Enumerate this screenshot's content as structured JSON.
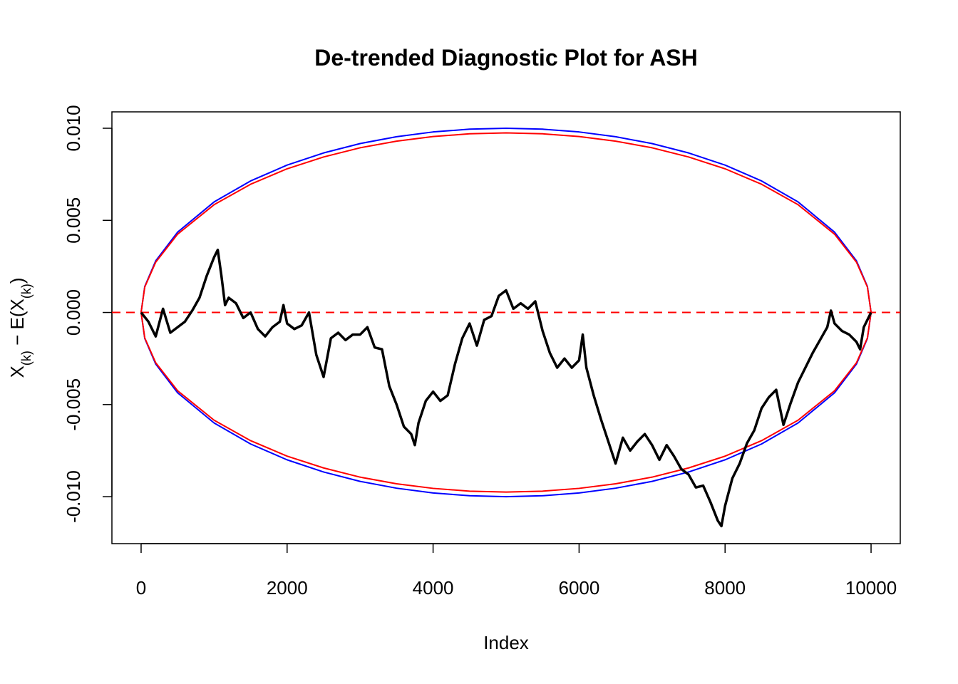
{
  "chart_data": {
    "type": "line",
    "title": "De-trended Diagnostic Plot for ASH",
    "xlabel": "Index",
    "ylabel": [
      "X",
      "(k)",
      " − E(X",
      "(k)",
      ")"
    ],
    "xlim": [
      -400,
      10400
    ],
    "ylim": [
      -0.01255,
      0.01089
    ],
    "xticks": [
      0,
      2000,
      4000,
      6000,
      8000,
      10000
    ],
    "yticks": [
      {
        "value": -0.01,
        "label": "-0.010"
      },
      {
        "value": -0.005,
        "label": "-0.005"
      },
      {
        "value": 0,
        "label": "0.000"
      },
      {
        "value": 0.005,
        "label": "0.005"
      },
      {
        "value": 0.01,
        "label": "0.010"
      }
    ],
    "reference_line": {
      "value": 0,
      "color": "#ff0000",
      "dashed": true
    },
    "series": [
      {
        "color": "#0000ff",
        "x": [
          0,
          50,
          200,
          500,
          1000,
          1500,
          2000,
          2500,
          3000,
          3500,
          4000,
          4500,
          5000,
          5500,
          6000,
          6500,
          7000,
          7500,
          8000,
          8500,
          9000,
          9500,
          9800,
          9950,
          10000
        ],
        "values": [
          0,
          0.00141,
          0.0028,
          0.00436,
          0.006,
          0.00714,
          0.008,
          0.00866,
          0.00917,
          0.00954,
          0.0098,
          0.00995,
          0.01,
          0.00995,
          0.0098,
          0.00954,
          0.00917,
          0.00866,
          0.008,
          0.00714,
          0.006,
          0.00436,
          0.0028,
          0.00141,
          0
        ]
      },
      {
        "color": "#0000ff",
        "x": [
          0,
          50,
          200,
          500,
          1000,
          1500,
          2000,
          2500,
          3000,
          3500,
          4000,
          4500,
          5000,
          5500,
          6000,
          6500,
          7000,
          7500,
          8000,
          8500,
          9000,
          9500,
          9800,
          9950,
          10000
        ],
        "values": [
          0,
          -0.00141,
          -0.0028,
          -0.00436,
          -0.006,
          -0.00714,
          -0.008,
          -0.00866,
          -0.00917,
          -0.00954,
          -0.0098,
          -0.00995,
          -0.01,
          -0.00995,
          -0.0098,
          -0.00954,
          -0.00917,
          -0.00866,
          -0.008,
          -0.00714,
          -0.006,
          -0.00436,
          -0.0028,
          -0.00141,
          0
        ]
      },
      {
        "color": "#ff0000",
        "x": [
          0,
          50,
          200,
          500,
          1000,
          1500,
          2000,
          2500,
          3000,
          3500,
          4000,
          4500,
          5000,
          5500,
          6000,
          6500,
          7000,
          7500,
          8000,
          8500,
          9000,
          9500,
          9800,
          9950,
          10000
        ],
        "values": [
          0,
          0.00138,
          0.00273,
          0.00425,
          0.00585,
          0.00696,
          0.0078,
          0.00844,
          0.00894,
          0.0093,
          0.00955,
          0.0097,
          0.00975,
          0.0097,
          0.00955,
          0.0093,
          0.00894,
          0.00844,
          0.0078,
          0.00696,
          0.00585,
          0.00425,
          0.00273,
          0.00138,
          0
        ]
      },
      {
        "color": "#ff0000",
        "x": [
          0,
          50,
          200,
          500,
          1000,
          1500,
          2000,
          2500,
          3000,
          3500,
          4000,
          4500,
          5000,
          5500,
          6000,
          6500,
          7000,
          7500,
          8000,
          8500,
          9000,
          9500,
          9800,
          9950,
          10000
        ],
        "values": [
          0,
          -0.00138,
          -0.00273,
          -0.00425,
          -0.00585,
          -0.00696,
          -0.0078,
          -0.00844,
          -0.00894,
          -0.0093,
          -0.00955,
          -0.0097,
          -0.00975,
          -0.0097,
          -0.00955,
          -0.0093,
          -0.00894,
          -0.00844,
          -0.0078,
          -0.00696,
          -0.00585,
          -0.00425,
          -0.00273,
          -0.00138,
          0
        ]
      },
      {
        "color": "#000000",
        "x": [
          0,
          100,
          200,
          300,
          400,
          500,
          600,
          700,
          800,
          900,
          1000,
          1050,
          1100,
          1150,
          1200,
          1300,
          1400,
          1500,
          1600,
          1700,
          1800,
          1900,
          1950,
          2000,
          2100,
          2200,
          2300,
          2400,
          2500,
          2600,
          2700,
          2800,
          2900,
          3000,
          3100,
          3200,
          3300,
          3400,
          3500,
          3600,
          3700,
          3750,
          3800,
          3900,
          4000,
          4100,
          4200,
          4300,
          4400,
          4500,
          4600,
          4700,
          4800,
          4900,
          5000,
          5100,
          5200,
          5300,
          5400,
          5500,
          5600,
          5700,
          5800,
          5900,
          6000,
          6050,
          6100,
          6200,
          6300,
          6400,
          6500,
          6600,
          6700,
          6800,
          6900,
          7000,
          7100,
          7200,
          7300,
          7400,
          7500,
          7600,
          7700,
          7800,
          7900,
          7950,
          8000,
          8100,
          8200,
          8300,
          8400,
          8500,
          8600,
          8700,
          8800,
          8900,
          9000,
          9100,
          9200,
          9300,
          9400,
          9450,
          9500,
          9600,
          9700,
          9800,
          9850,
          9900,
          10000
        ],
        "values": [
          0,
          -0.0005,
          -0.0013,
          0.0002,
          -0.0011,
          -0.0008,
          -0.0005,
          0.0001,
          0.0008,
          0.002,
          0.003,
          0.0034,
          0.002,
          0.0004,
          0.0008,
          0.0005,
          -0.0003,
          0,
          -0.0009,
          -0.0013,
          -0.0008,
          -0.0005,
          0.0004,
          -0.0006,
          -0.0009,
          -0.0007,
          0,
          -0.0023,
          -0.0035,
          -0.0014,
          -0.0011,
          -0.0015,
          -0.0012,
          -0.0012,
          -0.0008,
          -0.0019,
          -0.002,
          -0.004,
          -0.005,
          -0.0062,
          -0.0066,
          -0.0072,
          -0.006,
          -0.0048,
          -0.0043,
          -0.0048,
          -0.0045,
          -0.0028,
          -0.0014,
          -0.0006,
          -0.0018,
          -0.0004,
          -0.0002,
          0.0009,
          0.0012,
          0.0002,
          0.0005,
          0.0002,
          0.0006,
          -0.001,
          -0.0022,
          -0.003,
          -0.0025,
          -0.003,
          -0.0026,
          -0.0012,
          -0.003,
          -0.0045,
          -0.0058,
          -0.007,
          -0.0082,
          -0.0068,
          -0.0075,
          -0.007,
          -0.0066,
          -0.0072,
          -0.008,
          -0.0072,
          -0.0078,
          -0.0085,
          -0.0088,
          -0.0095,
          -0.0094,
          -0.0103,
          -0.0113,
          -0.0116,
          -0.0105,
          -0.009,
          -0.0082,
          -0.0071,
          -0.0064,
          -0.0052,
          -0.0046,
          -0.0042,
          -0.0061,
          -0.0049,
          -0.0038,
          -0.003,
          -0.0022,
          -0.0015,
          -0.0008,
          0.0001,
          -0.0006,
          -0.001,
          -0.0012,
          -0.0016,
          -0.002,
          -0.0008,
          0
        ]
      }
    ]
  }
}
